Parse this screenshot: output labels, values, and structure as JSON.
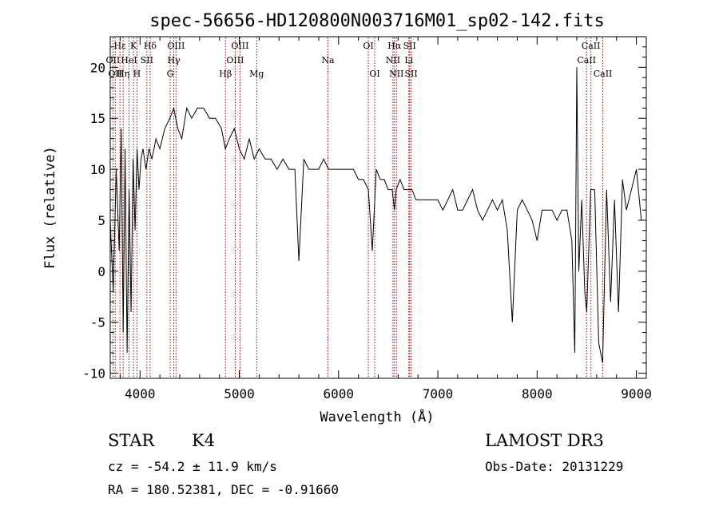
{
  "chart_data": {
    "type": "line",
    "title": "spec-56656-HD120800N003716M01_sp02-142.fits",
    "xlabel": "Wavelength (Å)",
    "ylabel": "Flux (relative)",
    "xlim": [
      3700,
      9100
    ],
    "ylim": [
      -10.5,
      23
    ],
    "xticks": [
      4000,
      5000,
      6000,
      7000,
      8000,
      9000
    ],
    "yticks": [
      -10,
      -5,
      0,
      5,
      10,
      15,
      20
    ],
    "grid": false,
    "series": [
      {
        "x": [
          3700,
          3730,
          3760,
          3790,
          3810,
          3830,
          3850,
          3870,
          3890,
          3910,
          3930,
          3950,
          3970,
          3990,
          4010,
          4030,
          4060,
          4090,
          4120,
          4160,
          4200,
          4250,
          4300,
          4340,
          4380,
          4420,
          4470,
          4520,
          4580,
          4640,
          4700,
          4760,
          4820,
          4860,
          4900,
          4950,
          5000,
          5050,
          5100,
          5150,
          5200,
          5260,
          5320,
          5380,
          5440,
          5500,
          5560,
          5600,
          5650,
          5700,
          5750,
          5800,
          5850,
          5900,
          5950,
          6000,
          6050,
          6100,
          6150,
          6200,
          6250,
          6300,
          6340,
          6380,
          6420,
          6460,
          6500,
          6540,
          6563,
          6580,
          6620,
          6660,
          6700,
          6740,
          6780,
          6820,
          6860,
          6900,
          6950,
          7000,
          7050,
          7100,
          7150,
          7200,
          7250,
          7300,
          7350,
          7400,
          7450,
          7500,
          7550,
          7600,
          7650,
          7700,
          7750,
          7800,
          7850,
          7900,
          7950,
          8000,
          8050,
          8100,
          8150,
          8200,
          8250,
          8300,
          8350,
          8380,
          8400,
          8420,
          8450,
          8480,
          8500,
          8540,
          8580,
          8620,
          8660,
          8700,
          8740,
          8780,
          8820,
          8860,
          8900,
          8950,
          9000,
          9050
        ],
        "values": [
          5,
          -2,
          10,
          2,
          14,
          -6,
          12,
          -8,
          8,
          -4,
          11,
          4,
          12,
          8,
          11,
          12,
          10,
          12,
          11,
          13,
          12,
          14,
          15,
          16,
          14,
          13,
          16,
          15,
          16,
          16,
          15,
          15,
          14,
          12,
          13,
          14,
          12,
          11,
          13,
          11,
          12,
          11,
          11,
          10,
          11,
          10,
          10,
          1,
          11,
          10,
          10,
          10,
          11,
          10,
          10,
          10,
          10,
          10,
          10,
          9,
          9,
          8,
          2,
          10,
          9,
          9,
          8,
          8,
          6,
          8,
          9,
          8,
          8,
          8,
          7,
          7,
          7,
          7,
          7,
          7,
          6,
          7,
          8,
          6,
          6,
          7,
          8,
          6,
          5,
          6,
          7,
          6,
          7,
          4,
          -5,
          6,
          7,
          6,
          5,
          3,
          6,
          6,
          6,
          5,
          6,
          6,
          3,
          -8,
          20,
          0,
          7,
          -2,
          -4,
          8,
          8,
          -7,
          -9,
          8,
          -3,
          7,
          -4,
          9,
          6,
          8,
          10,
          5
        ]
      }
    ],
    "lines": [
      {
        "wl": 3727,
        "labels": [
          "OII"
        ],
        "rows": [
          1
        ]
      },
      {
        "wl": 3750,
        "labels": [
          "OII"
        ],
        "rows": [
          2
        ]
      },
      {
        "wl": 3798,
        "labels": [
          "Hε"
        ],
        "rows": [
          0
        ]
      },
      {
        "wl": 3830,
        "labels": [
          "Hη"
        ],
        "rows": [
          2
        ]
      },
      {
        "wl": 3889,
        "labels": [
          "HeI"
        ],
        "rows": [
          1
        ]
      },
      {
        "wl": 3934,
        "labels": [
          "K"
        ],
        "rows": [
          0
        ]
      },
      {
        "wl": 3969,
        "labels": [
          "H"
        ],
        "rows": [
          2
        ]
      },
      {
        "wl": 4069,
        "labels": [
          "SII"
        ],
        "rows": [
          1
        ]
      },
      {
        "wl": 4102,
        "labels": [
          "Hδ"
        ],
        "rows": [
          0
        ]
      },
      {
        "wl": 4304,
        "labels": [
          "G"
        ],
        "rows": [
          2
        ]
      },
      {
        "wl": 4340,
        "labels": [
          "Hγ"
        ],
        "rows": [
          1
        ]
      },
      {
        "wl": 4363,
        "labels": [
          "OIII"
        ],
        "rows": [
          0
        ]
      },
      {
        "wl": 4861,
        "labels": [
          "Hβ"
        ],
        "rows": [
          2
        ]
      },
      {
        "wl": 4959,
        "labels": [
          "OIII"
        ],
        "rows": [
          1
        ]
      },
      {
        "wl": 5007,
        "labels": [
          "OIII"
        ],
        "rows": [
          0
        ]
      },
      {
        "wl": 5175,
        "labels": [
          "Mg"
        ],
        "rows": [
          2
        ]
      },
      {
        "wl": 5893,
        "labels": [
          "Na"
        ],
        "rows": [
          1
        ]
      },
      {
        "wl": 6300,
        "labels": [
          "OI"
        ],
        "rows": [
          0
        ]
      },
      {
        "wl": 6364,
        "labels": [
          "OI"
        ],
        "rows": [
          2
        ]
      },
      {
        "wl": 6548,
        "labels": [
          "NII"
        ],
        "rows": [
          1
        ]
      },
      {
        "wl": 6563,
        "labels": [
          "Hα"
        ],
        "rows": [
          0
        ]
      },
      {
        "wl": 6583,
        "labels": [
          "NII"
        ],
        "rows": [
          2
        ]
      },
      {
        "wl": 6708,
        "labels": [
          "Li"
        ],
        "rows": [
          1
        ]
      },
      {
        "wl": 6716,
        "labels": [
          "SII"
        ],
        "rows": [
          0
        ]
      },
      {
        "wl": 6731,
        "labels": [
          "SII"
        ],
        "rows": [
          2
        ]
      },
      {
        "wl": 8498,
        "labels": [
          "CaII"
        ],
        "rows": [
          1
        ]
      },
      {
        "wl": 8542,
        "labels": [
          "CaII"
        ],
        "rows": [
          0
        ]
      },
      {
        "wl": 8662,
        "labels": [
          "CaII"
        ],
        "rows": [
          2
        ]
      }
    ]
  },
  "info": {
    "object_class": "STAR",
    "subclass": "K4",
    "redshift": "cz = -54.2 ± 11.9 km/s",
    "coords": "RA = 180.52381, DEC =  -0.91660",
    "survey": "LAMOST DR3",
    "obs_date": "Obs-Date: 20131229"
  }
}
